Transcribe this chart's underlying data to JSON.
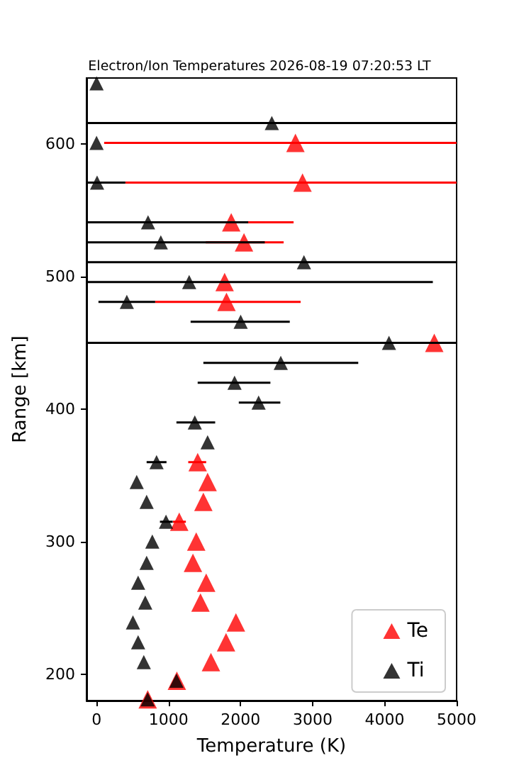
{
  "chart_data": {
    "type": "scatter",
    "title": "Electron/Ion Temperatures 2026-08-19 07:20:53 LT",
    "xlabel": "Temperature (K)",
    "ylabel": "Range [km]",
    "xlim": [
      -140,
      5000
    ],
    "xticks": [
      0,
      1000,
      2000,
      3000,
      4000,
      5000
    ],
    "ylim": [
      180,
      650
    ],
    "yticks": [
      200,
      300,
      400,
      500,
      600
    ],
    "grid": false,
    "legend": "bottom right",
    "marker": "triangle",
    "series": [
      {
        "name": "Te",
        "color": "#ff0000",
        "x": [
          710,
          1115,
          1588,
          1798,
          1935,
          1443,
          1522,
          1338,
          1384,
          1148,
          1483,
          1542,
          1404,
          4690,
          1804,
          1778,
          2047,
          1870,
          2860,
          2762
        ],
        "values": [
          181,
          195,
          209,
          224,
          239,
          254,
          269,
          284,
          300,
          315,
          330,
          345,
          360,
          450,
          481,
          496,
          526,
          541,
          571,
          601
        ],
        "xerrors": [
          null,
          null,
          null,
          null,
          null,
          null,
          null,
          null,
          null,
          [
            1060,
            1240
          ],
          null,
          null,
          [
            1273,
            1522
          ],
          null,
          [
            814,
            2834
          ],
          null,
          [
            1516,
            2598
          ],
          [
            985,
            2736
          ],
          [
            400,
            5000
          ],
          [
            105,
            5000
          ]
        ]
      },
      {
        "name": "Ti",
        "color": "#000000",
        "x": [
          709,
          1109,
          656,
          577,
          505,
          676,
          577,
          695,
          774,
          964,
          695,
          557,
          833,
          1542,
          1364,
          2250,
          1916,
          2558,
          4061,
          2001,
          420,
          1286,
          2880,
          892,
          715,
          7,
          0,
          2434,
          0
        ],
        "values": [
          181,
          195,
          209,
          224,
          239,
          254,
          269,
          284,
          300,
          315,
          330,
          345,
          360,
          375,
          390,
          405,
          420,
          435,
          450,
          466,
          481,
          496,
          511,
          526,
          541,
          571,
          601,
          616,
          646
        ],
        "xerrors": [
          null,
          null,
          null,
          null,
          null,
          null,
          null,
          null,
          null,
          [
            880,
            1057
          ],
          null,
          null,
          [
            695,
            971
          ],
          null,
          [
            1109,
            1647
          ],
          [
            1975,
            2552
          ],
          [
            1404,
            2414
          ],
          [
            1483,
            3634
          ],
          [
            -140,
            5000
          ],
          [
            1306,
            2683
          ],
          [
            26,
            814
          ],
          [
            -140,
            4670
          ],
          [
            -140,
            5000
          ],
          [
            -140,
            2336
          ],
          [
            -140,
            2106
          ],
          [
            -140,
            400
          ],
          null,
          [
            -140,
            5000
          ],
          null
        ]
      }
    ]
  }
}
